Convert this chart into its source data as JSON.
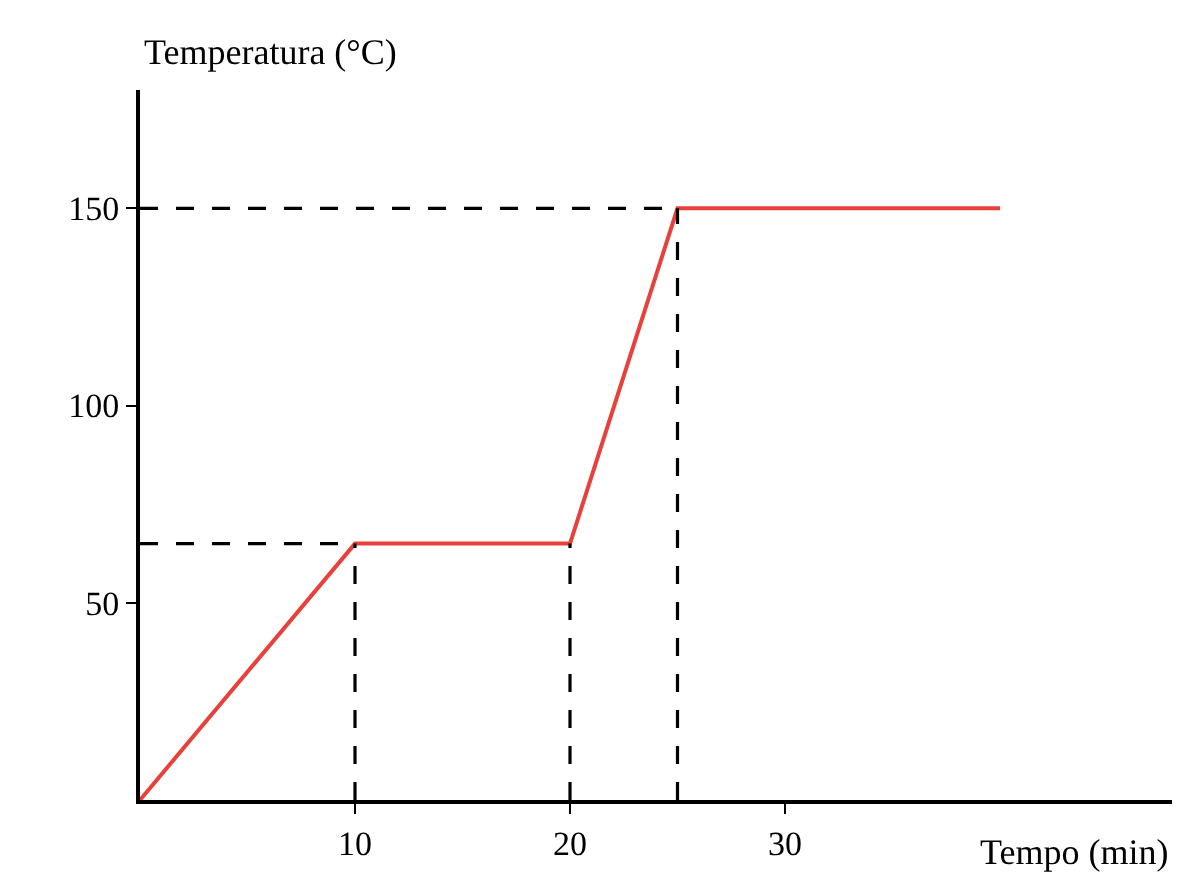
{
  "chart_data": {
    "type": "line",
    "xlabel": "Tempo (min)",
    "ylabel": "Temperatura (°C)",
    "xlim": [
      0,
      48
    ],
    "xticks": [
      10,
      20,
      30
    ],
    "ylim": [
      0,
      180
    ],
    "yticks": [
      50,
      100,
      150
    ],
    "marker": "none",
    "series": [
      {
        "color": "#e8413c",
        "x": [
          0,
          10,
          20,
          25,
          40
        ],
        "values": [
          0,
          65,
          65,
          150,
          150
        ],
        "line_style": "solid"
      },
      {
        "color": "#000000",
        "x": [
          0,
          25
        ],
        "values": [
          150,
          150
        ],
        "line_style": "dashed"
      },
      {
        "color": "#000000",
        "x": [
          0,
          10
        ],
        "values": [
          65,
          65
        ],
        "line_style": "dashed"
      },
      {
        "color": "#000000",
        "x": [
          10,
          10
        ],
        "values": [
          0,
          65
        ],
        "line_style": "dashed"
      },
      {
        "color": "#000000",
        "x": [
          20,
          20
        ],
        "values": [
          0,
          65
        ],
        "line_style": "dashed"
      },
      {
        "color": "#000000",
        "x": [
          25,
          25
        ],
        "values": [
          0,
          150
        ],
        "line_style": "dashed"
      }
    ]
  }
}
